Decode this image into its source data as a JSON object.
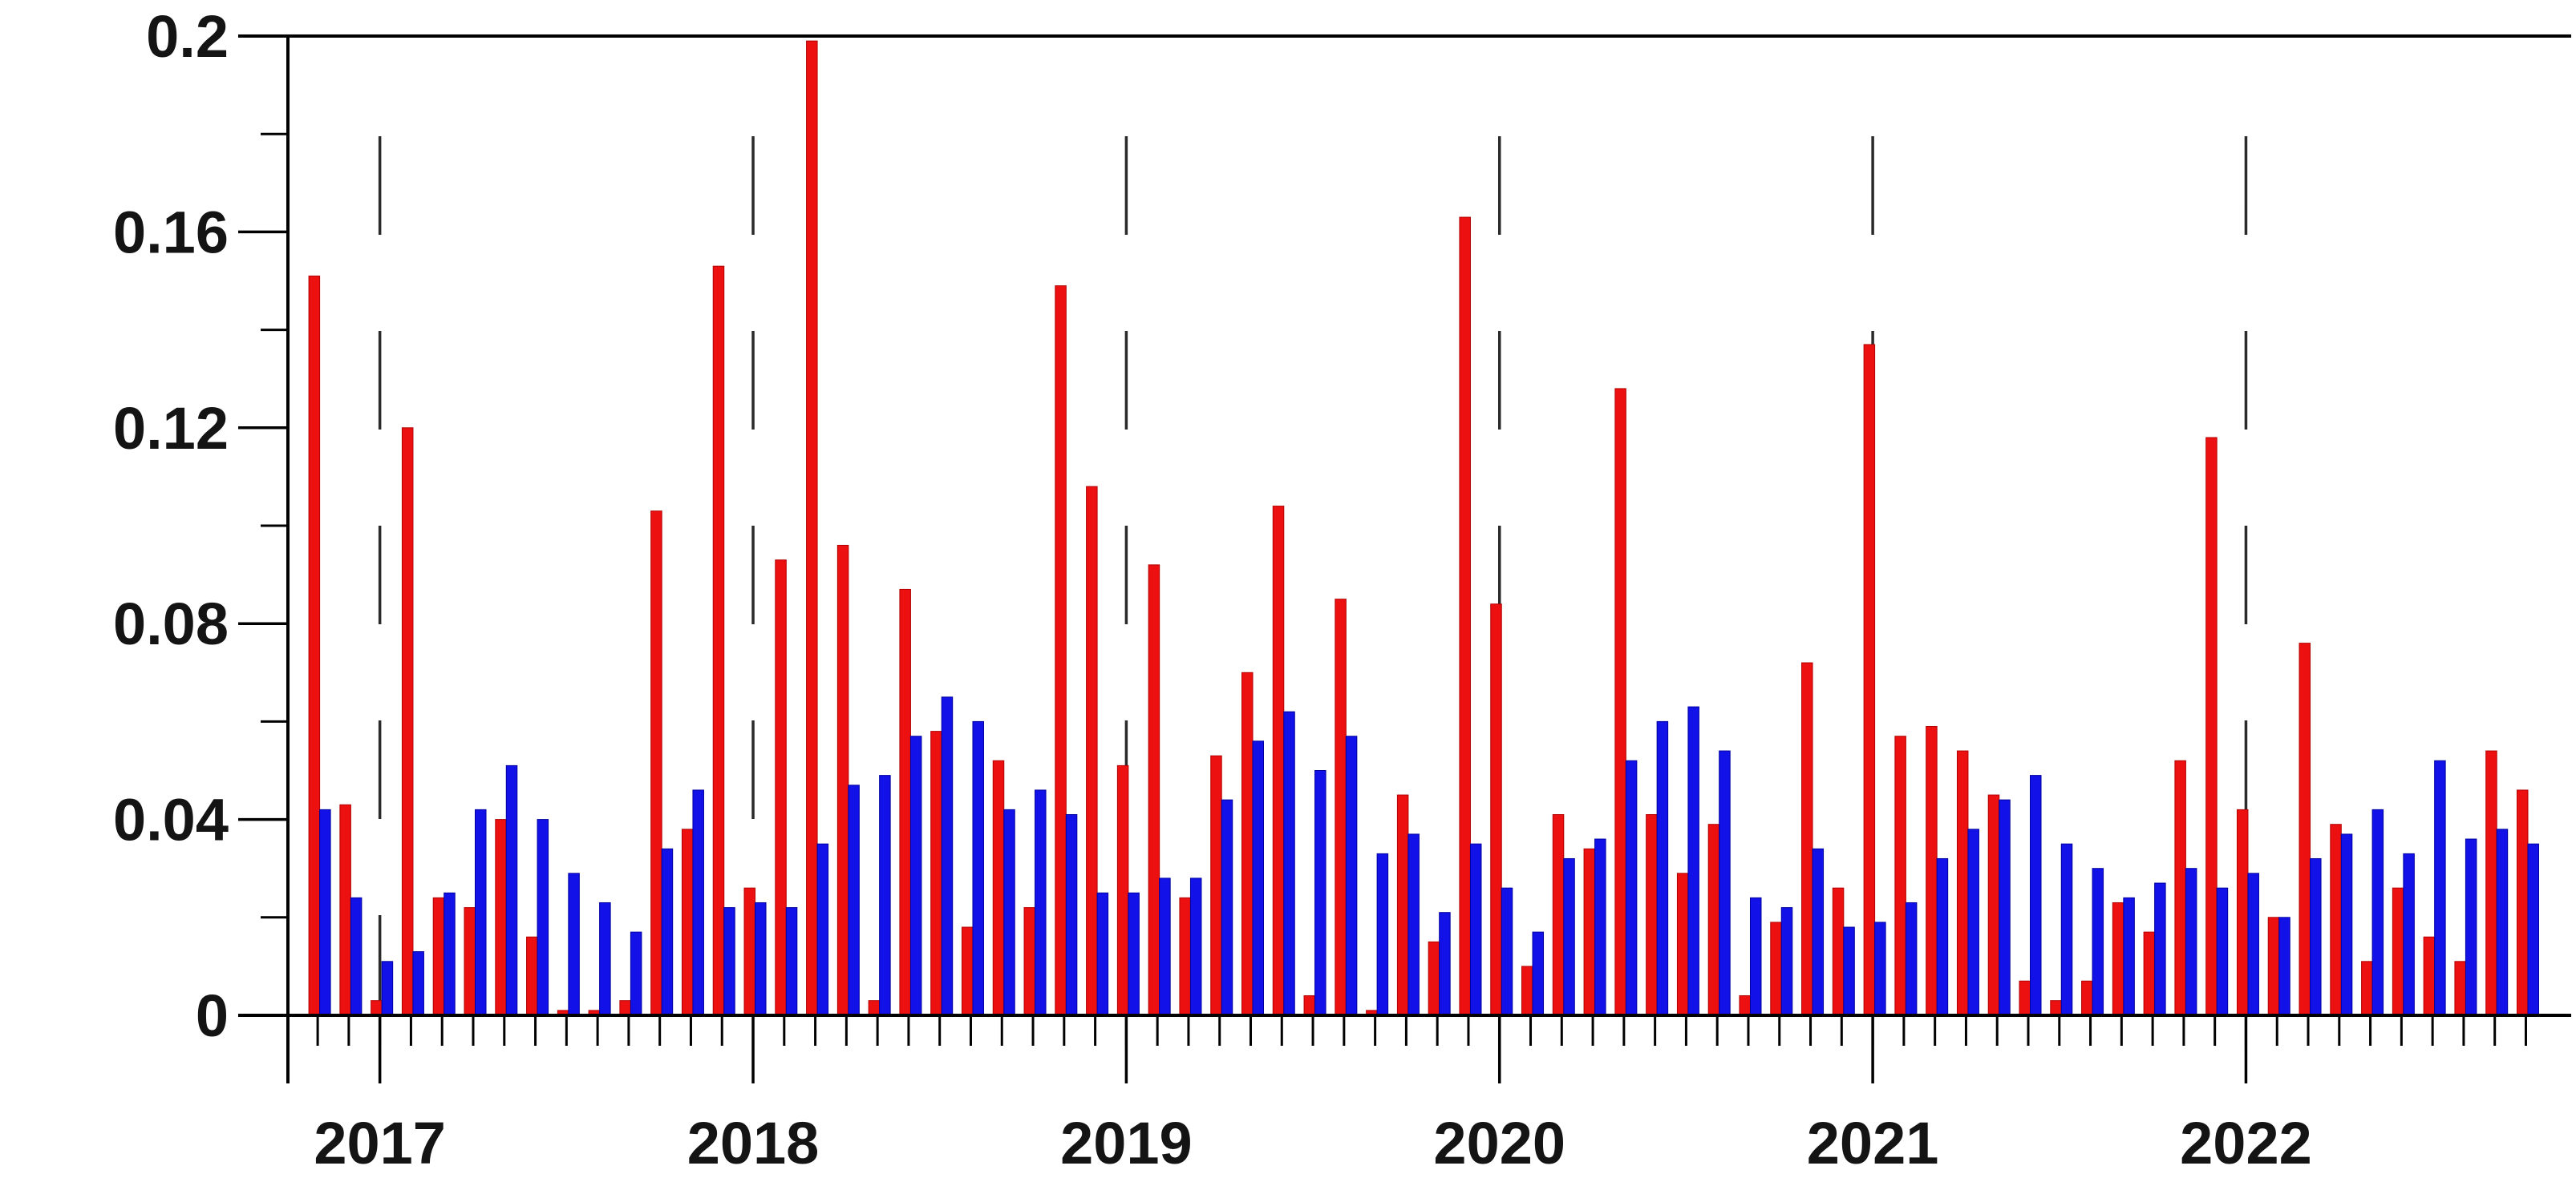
{
  "figure": {
    "background": "#ffffff",
    "title": "",
    "legend": "none"
  },
  "chart_data": {
    "type": "bar",
    "title": "",
    "xlabel": "",
    "ylabel": "",
    "ylim": [
      0,
      0.2
    ],
    "yticks": [
      0,
      0.04,
      0.08,
      0.12,
      0.16,
      0.2
    ],
    "ytick_labels": [
      "0",
      "0.04",
      "0.08",
      "0.12",
      "0.16",
      "0.2"
    ],
    "minor_ytick_step": 0.02,
    "grid": "vertical dashed line at each January",
    "legend_position": "none",
    "year_tick_labels": [
      "2017",
      "2018",
      "2019",
      "2020",
      "2021",
      "2022"
    ],
    "categories": [
      "2016-11",
      "2016-12",
      "2017-01",
      "2017-02",
      "2017-03",
      "2017-04",
      "2017-05",
      "2017-06",
      "2017-07",
      "2017-08",
      "2017-09",
      "2017-10",
      "2017-11",
      "2017-12",
      "2018-01",
      "2018-02",
      "2018-03",
      "2018-04",
      "2018-05",
      "2018-06",
      "2018-07",
      "2018-08",
      "2018-09",
      "2018-10",
      "2018-11",
      "2018-12",
      "2019-01",
      "2019-02",
      "2019-03",
      "2019-04",
      "2019-05",
      "2019-06",
      "2019-07",
      "2019-08",
      "2019-09",
      "2019-10",
      "2019-11",
      "2019-12",
      "2020-01",
      "2020-02",
      "2020-03",
      "2020-04",
      "2020-05",
      "2020-06",
      "2020-07",
      "2020-08",
      "2020-09",
      "2020-10",
      "2020-11",
      "2020-12",
      "2021-01",
      "2021-02",
      "2021-03",
      "2021-04",
      "2021-05",
      "2021-06",
      "2021-07",
      "2021-08",
      "2021-09",
      "2021-10",
      "2021-11",
      "2021-12",
      "2022-01",
      "2022-02",
      "2022-03",
      "2022-04",
      "2022-05",
      "2022-06",
      "2022-07",
      "2022-08",
      "2022-09",
      "2022-10"
    ],
    "series": [
      {
        "name": "red-series",
        "color": "#ec1010",
        "edge_color": "#b30000",
        "values": [
          0.151,
          0.043,
          0.003,
          0.12,
          0.024,
          0.022,
          0.04,
          0.016,
          0.001,
          0.001,
          0.003,
          0.103,
          0.038,
          0.153,
          0.026,
          0.093,
          0.199,
          0.096,
          0.003,
          0.087,
          0.058,
          0.018,
          0.052,
          0.022,
          0.149,
          0.108,
          0.051,
          0.092,
          0.024,
          0.053,
          0.07,
          0.104,
          0.004,
          0.085,
          0.001,
          0.045,
          0.015,
          0.163,
          0.084,
          0.01,
          0.041,
          0.034,
          0.128,
          0.041,
          0.029,
          0.039,
          0.004,
          0.019,
          0.072,
          0.026,
          0.137,
          0.057,
          0.059,
          0.054,
          0.045,
          0.007,
          0.003,
          0.007,
          0.023,
          0.017,
          0.052,
          0.118,
          0.042,
          0.02,
          0.076,
          0.039,
          0.011,
          0.026,
          0.016,
          0.011,
          0.054,
          0.046
        ]
      },
      {
        "name": "blue-series",
        "color": "#1111e8",
        "edge_color": "#0000a0",
        "values": [
          0.042,
          0.024,
          0.011,
          0.013,
          0.025,
          0.042,
          0.051,
          0.04,
          0.029,
          0.023,
          0.017,
          0.034,
          0.046,
          0.022,
          0.023,
          0.022,
          0.035,
          0.047,
          0.049,
          0.057,
          0.065,
          0.06,
          0.042,
          0.046,
          0.041,
          0.025,
          0.025,
          0.028,
          0.028,
          0.044,
          0.056,
          0.062,
          0.05,
          0.057,
          0.033,
          0.037,
          0.021,
          0.035,
          0.026,
          0.017,
          0.032,
          0.036,
          0.052,
          0.06,
          0.063,
          0.054,
          0.024,
          0.022,
          0.034,
          0.018,
          0.019,
          0.023,
          0.032,
          0.038,
          0.044,
          0.049,
          0.035,
          0.03,
          0.024,
          0.027,
          0.03,
          0.026,
          0.029,
          0.02,
          0.032,
          0.037,
          0.042,
          0.033,
          0.052,
          0.036,
          0.038,
          0.035
        ]
      }
    ],
    "axis_color": "#000000",
    "dashed_line_color": "#2a2a2a"
  }
}
